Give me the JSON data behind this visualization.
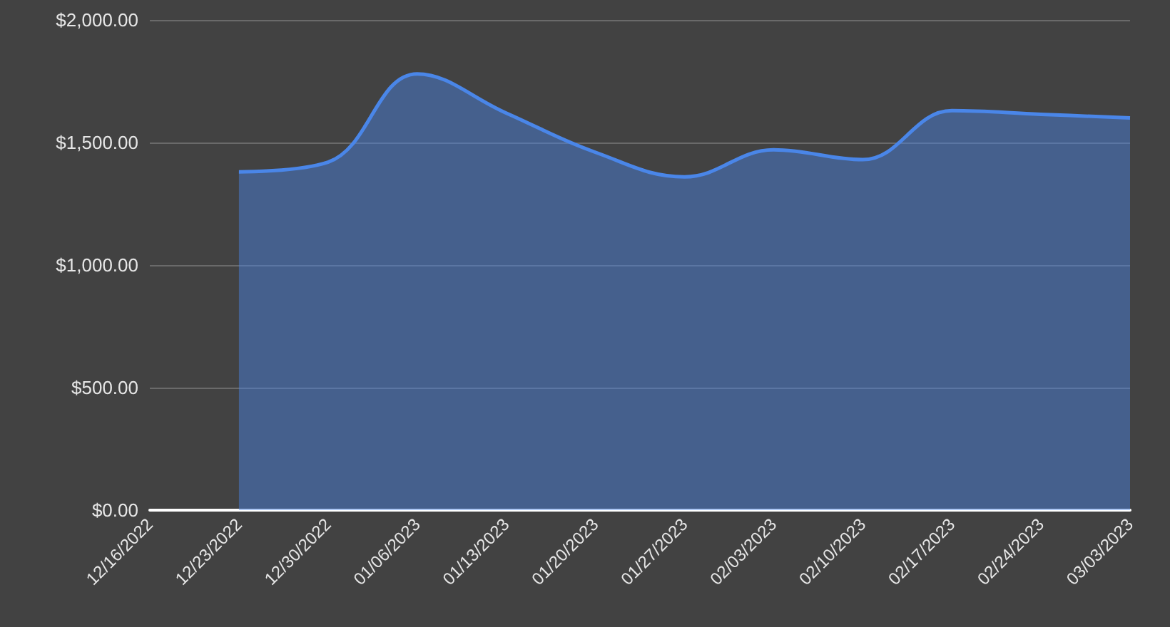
{
  "chart_data": {
    "type": "area",
    "categories": [
      "12/16/2022",
      "12/23/2022",
      "12/30/2022",
      "01/06/2023",
      "01/13/2023",
      "01/20/2023",
      "01/27/2023",
      "02/03/2023",
      "02/10/2023",
      "02/17/2023",
      "02/24/2023",
      "03/03/2023"
    ],
    "series": [
      {
        "color": "#4a86e8",
        "values": [
          null,
          1380,
          1420,
          1780,
          1620,
          1460,
          1360,
          1470,
          1430,
          1630,
          1615,
          1600
        ]
      }
    ],
    "ylim": [
      0,
      2000
    ],
    "yticks": [
      {
        "value": 0,
        "label": "$0.00"
      },
      {
        "value": 500,
        "label": "$500.00"
      },
      {
        "value": 1000,
        "label": "$1,000.00"
      },
      {
        "value": 1500,
        "label": "$1,500.00"
      },
      {
        "value": 2000,
        "label": "$2,000.00"
      }
    ],
    "grid": "y",
    "marker": "none"
  }
}
